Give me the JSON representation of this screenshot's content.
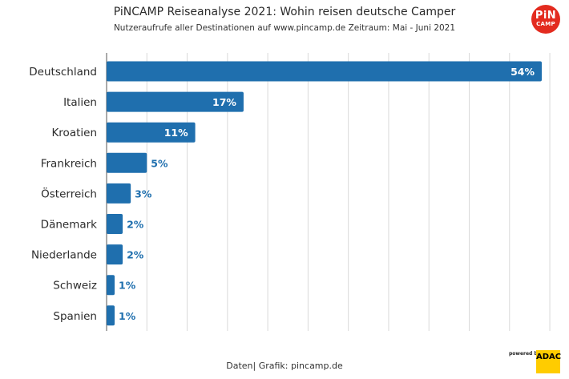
{
  "chart_data": {
    "type": "bar",
    "orientation": "horizontal",
    "title": "PiNCAMP Reiseanalyse 2021: Wohin reisen deutsche Camper",
    "subtitle": "Nutzeraufrufe aller Destinationen auf www.pincamp.de Zeitraum: Mai - Juni 2021",
    "categories": [
      "Deutschland",
      "Italien",
      "Kroatien",
      "Frankreich",
      "Österreich",
      "Dänemark",
      "Niederlande",
      "Schweiz",
      "Spanien"
    ],
    "values": [
      54,
      17,
      11,
      5,
      3,
      2,
      2,
      1,
      1
    ],
    "value_labels": [
      "54%",
      "17%",
      "11%",
      "5%",
      "3%",
      "2%",
      "2%",
      "1%",
      "1%"
    ],
    "xlim": [
      0,
      55
    ],
    "grid": "vertical",
    "bar_color": "#1f6fae",
    "label_color_inside": "#ffffff",
    "label_color_outside": "#1f6fae"
  },
  "source_note": "Daten| Grafik: pincamp.de",
  "logo": {
    "line1": "PiN",
    "line2": "CAMP",
    "color": "#e32b1f"
  },
  "badge": {
    "powered": "powered by",
    "brand": "ADAC",
    "color": "#ffcc00"
  }
}
